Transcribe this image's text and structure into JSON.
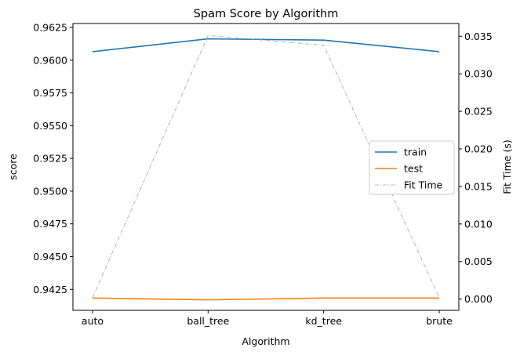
{
  "chart_data": {
    "type": "line",
    "title": "Spam Score by Algorithm",
    "xlabel": "Algorithm",
    "ylabel": "score",
    "y2label": "Fit Time (s)",
    "categories": [
      "auto",
      "ball_tree",
      "kd_tree",
      "brute"
    ],
    "series": [
      {
        "name": "train",
        "axis": "left",
        "color": "#1f77b4",
        "style": "solid",
        "values": [
          0.96065,
          0.96163,
          0.96153,
          0.96065
        ]
      },
      {
        "name": "test",
        "axis": "left",
        "color": "#ff7f0e",
        "style": "solid",
        "values": [
          0.94184,
          0.9417,
          0.94184,
          0.94184
        ]
      },
      {
        "name": "Fit Time",
        "axis": "right",
        "color": "#a0a0a0",
        "style": "dashdot",
        "values": [
          0.0002,
          0.0351,
          0.0338,
          0.0002
        ]
      }
    ],
    "ylim": [
      0.9409,
      0.9628
    ],
    "y2lim": [
      -0.0015,
      0.0367
    ],
    "yticks": [
      "0.9425",
      "0.9450",
      "0.9475",
      "0.9500",
      "0.9525",
      "0.9550",
      "0.9575",
      "0.9600",
      "0.9625"
    ],
    "y2ticks": [
      "0.000",
      "0.005",
      "0.010",
      "0.015",
      "0.020",
      "0.025",
      "0.030",
      "0.035"
    ],
    "grid": false,
    "legend": "center-right"
  }
}
